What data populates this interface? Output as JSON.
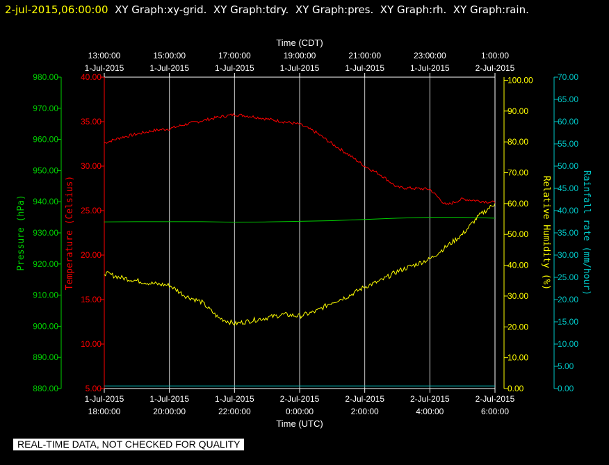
{
  "header": {
    "datetime": "2-jul-2015,06:00:00",
    "graphs": [
      "XY Graph:xy-grid.",
      "XY Graph:tdry.",
      "XY Graph:pres.",
      "XY Graph:rh.",
      "XY Graph:rain."
    ]
  },
  "quality_notice": "REAL-TIME DATA, NOT CHECKED FOR QUALITY",
  "colors": {
    "background": "#000000",
    "temperature": "#ff0000",
    "pressure": "#00d000",
    "humidity": "#ffff00",
    "rain": "#00c8c8",
    "grid": "#d0d0d0",
    "header_date": "#ffff00",
    "header_text": "#ffffff"
  },
  "chart_data": {
    "type": "line",
    "top_axis": {
      "label": "Time (CDT)",
      "ticks": [
        {
          "time": "13:00:00",
          "date": "1-Jul-2015"
        },
        {
          "time": "15:00:00",
          "date": "1-Jul-2015"
        },
        {
          "time": "17:00:00",
          "date": "1-Jul-2015"
        },
        {
          "time": "19:00:00",
          "date": "1-Jul-2015"
        },
        {
          "time": "21:00:00",
          "date": "1-Jul-2015"
        },
        {
          "time": "23:00:00",
          "date": "1-Jul-2015"
        },
        {
          "time": "1:00:00",
          "date": "2-Jul-2015"
        }
      ]
    },
    "bottom_axis": {
      "label": "Time (UTC)",
      "ticks": [
        {
          "date": "1-Jul-2015",
          "time": "18:00:00"
        },
        {
          "date": "1-Jul-2015",
          "time": "20:00:00"
        },
        {
          "date": "1-Jul-2015",
          "time": "22:00:00"
        },
        {
          "date": "2-Jul-2015",
          "time": "0:00:00"
        },
        {
          "date": "2-Jul-2015",
          "time": "2:00:00"
        },
        {
          "date": "2-Jul-2015",
          "time": "4:00:00"
        },
        {
          "date": "2-Jul-2015",
          "time": "6:00:00"
        }
      ]
    },
    "x_range_hours": [
      0,
      12
    ],
    "y_axes": {
      "pressure": {
        "label": "Pressure (hPa)",
        "range": [
          880,
          980
        ],
        "ticks": [
          "880.00",
          "890.00",
          "900.00",
          "910.00",
          "920.00",
          "930.00",
          "940.00",
          "950.00",
          "960.00",
          "970.00",
          "980.00"
        ]
      },
      "temperature": {
        "label": "Temperature (Celsius)",
        "range": [
          5,
          40
        ],
        "ticks": [
          "5.00",
          "10.00",
          "15.00",
          "20.00",
          "25.00",
          "30.00",
          "35.00",
          "40.00"
        ]
      },
      "humidity": {
        "label": "Relative Humidity (%)",
        "range": [
          0,
          101
        ],
        "ticks": [
          "0.00",
          "10.00",
          "20.00",
          "30.00",
          "40.00",
          "50.00",
          "60.00",
          "70.00",
          "80.00",
          "90.00",
          "100.00"
        ]
      },
      "rain": {
        "label": "Rainfall rate (mm/hour)",
        "range": [
          0,
          70
        ],
        "ticks": [
          "0.00",
          "5.00",
          "10.00",
          "15.00",
          "20.00",
          "25.00",
          "30.00",
          "35.00",
          "40.00",
          "45.00",
          "50.00",
          "55.00",
          "60.00",
          "65.00",
          "70.00"
        ]
      }
    },
    "series": [
      {
        "name": "tdry",
        "axis": "temperature",
        "x": [
          0,
          0.5,
          1,
          1.5,
          2,
          2.5,
          3,
          3.5,
          4,
          4.5,
          5,
          5.5,
          6,
          6.5,
          7,
          7.5,
          8,
          8.5,
          9,
          9.5,
          10,
          10.5,
          11,
          11.5,
          12
        ],
        "y": [
          32.6,
          33.2,
          33.6,
          34.0,
          34.2,
          34.7,
          35.1,
          35.5,
          35.8,
          35.6,
          35.3,
          35.0,
          34.7,
          33.8,
          32.5,
          31.3,
          30.0,
          29.0,
          27.6,
          27.5,
          27.4,
          25.6,
          26.3,
          26.1,
          25.9
        ]
      },
      {
        "name": "pres",
        "axis": "pressure",
        "x": [
          0,
          1,
          2,
          3,
          4,
          5,
          6,
          7,
          8,
          9,
          10,
          11,
          12
        ],
        "y": [
          933.5,
          933.6,
          933.6,
          933.6,
          933.4,
          933.5,
          933.7,
          933.9,
          934.3,
          934.7,
          935.0,
          935.0,
          934.7
        ]
      },
      {
        "name": "rh",
        "axis": "humidity",
        "x": [
          0,
          0.5,
          1,
          1.5,
          2,
          2.5,
          3,
          3.5,
          4,
          4.5,
          5,
          5.5,
          6,
          6.5,
          7,
          7.5,
          8,
          8.5,
          9,
          9.5,
          10,
          10.5,
          11,
          11.5,
          12
        ],
        "y": [
          37.5,
          36,
          35,
          34,
          33.5,
          30,
          28,
          23,
          21,
          22,
          23,
          24,
          23.5,
          25,
          28,
          30,
          33,
          35,
          38,
          40,
          42,
          46,
          50,
          56,
          60
        ]
      },
      {
        "name": "rain",
        "axis": "rain",
        "x": [
          0,
          12
        ],
        "y": [
          0.6,
          0.6
        ]
      }
    ]
  }
}
